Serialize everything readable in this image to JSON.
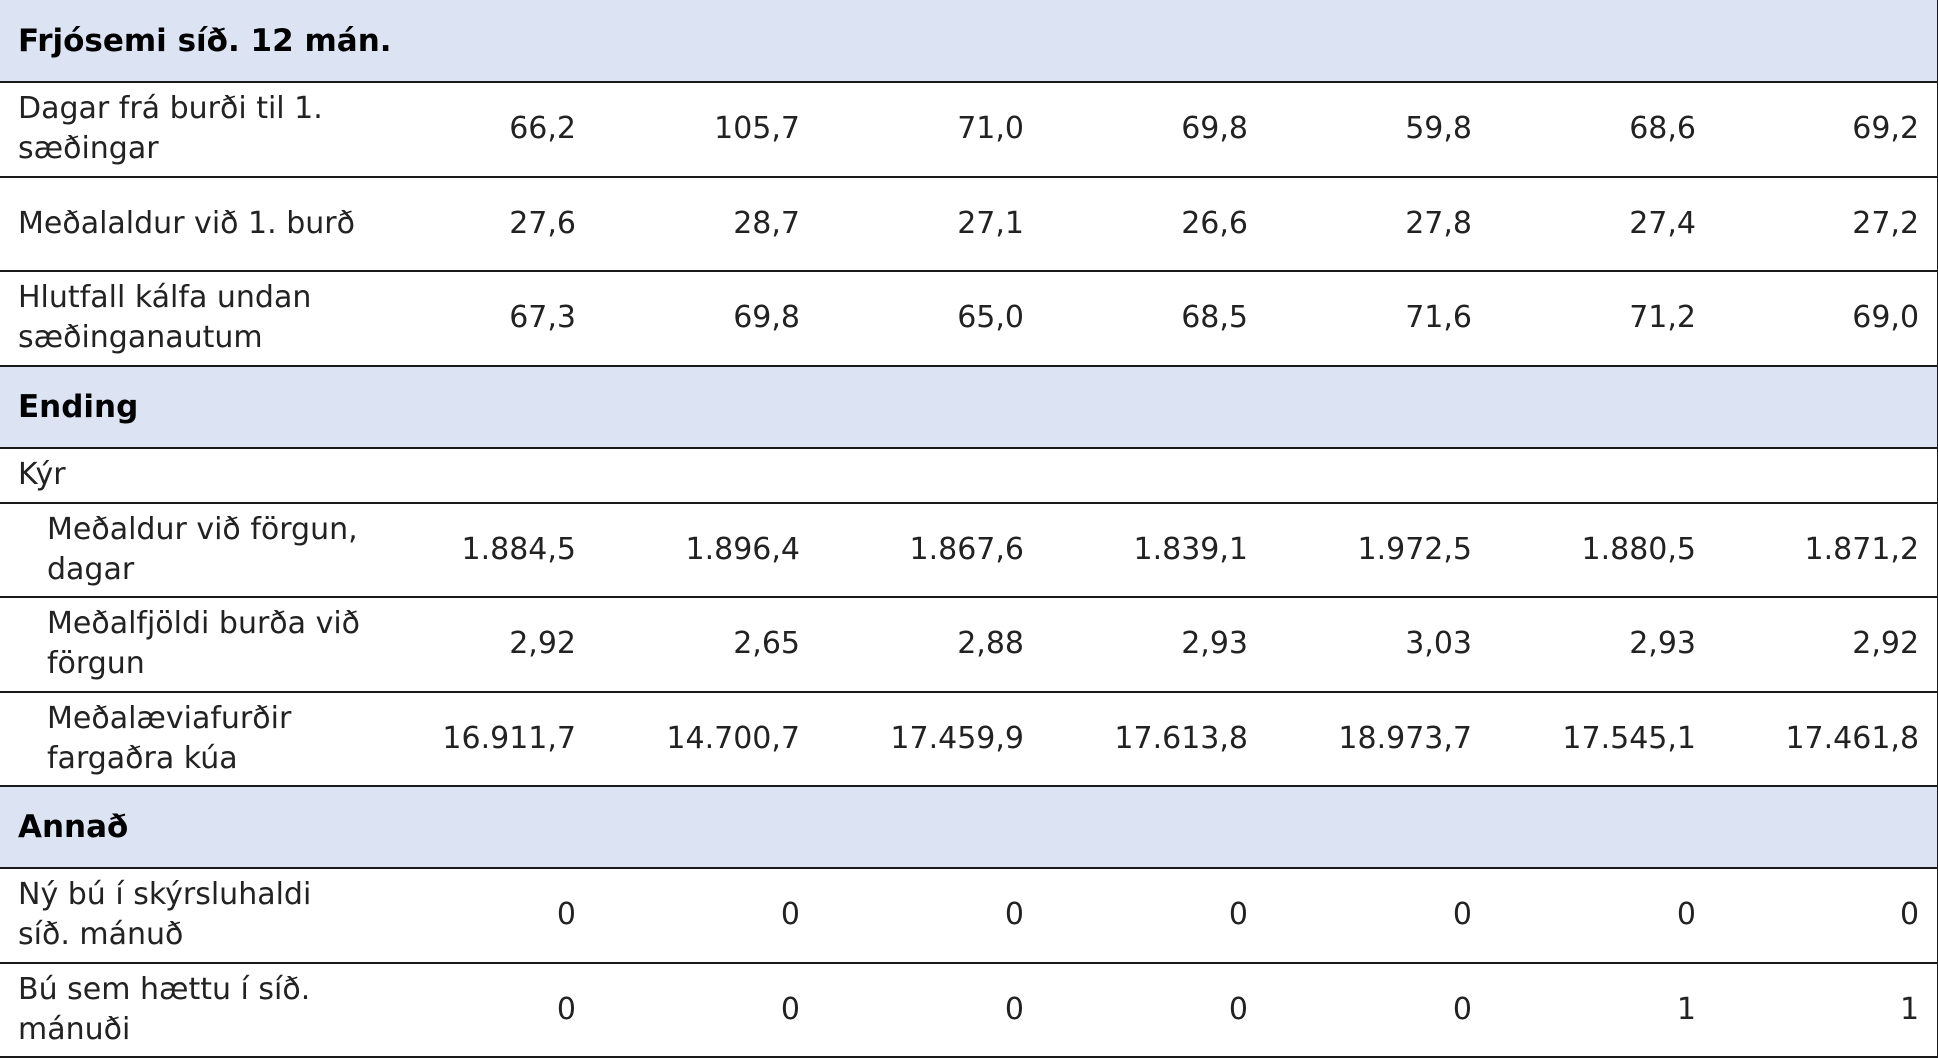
{
  "sections": [
    {
      "title": "Frjósemi síð. 12 mán.",
      "rows": [
        {
          "label": "Dagar frá burði til 1. sæðingar",
          "values": [
            "66,2",
            "105,7",
            "71,0",
            "69,8",
            "59,8",
            "68,6",
            "69,2"
          ]
        },
        {
          "label": "Meðalaldur við 1. burð",
          "values": [
            "27,6",
            "28,7",
            "27,1",
            "26,6",
            "27,8",
            "27,4",
            "27,2"
          ]
        },
        {
          "label": "Hlutfall kálfa undan sæðinganautum",
          "values": [
            "67,3",
            "69,8",
            "65,0",
            "68,5",
            "71,6",
            "71,2",
            "69,0"
          ]
        }
      ]
    },
    {
      "title": "Ending",
      "subheading": "Kýr",
      "rows": [
        {
          "label": "Meðaldur við förgun, dagar",
          "values": [
            "1.884,5",
            "1.896,4",
            "1.867,6",
            "1.839,1",
            "1.972,5",
            "1.880,5",
            "1.871,2"
          ]
        },
        {
          "label": "Meðalfjöldi burða við förgun",
          "values": [
            "2,92",
            "2,65",
            "2,88",
            "2,93",
            "3,03",
            "2,93",
            "2,92"
          ]
        },
        {
          "label": "Meðalæviafurðir fargaðra kúa",
          "values": [
            "16.911,7",
            "14.700,7",
            "17.459,9",
            "17.613,8",
            "18.973,7",
            "17.545,1",
            "17.461,8"
          ]
        }
      ]
    },
    {
      "title": "Annað",
      "rows": [
        {
          "label": "Ný bú í skýrsluhaldi síð. mánuð",
          "values": [
            "0",
            "0",
            "0",
            "0",
            "0",
            "0",
            "0"
          ]
        },
        {
          "label": "Bú sem hættu í síð. mánuði",
          "values": [
            "0",
            "0",
            "0",
            "0",
            "0",
            "1",
            "1"
          ]
        }
      ]
    }
  ]
}
